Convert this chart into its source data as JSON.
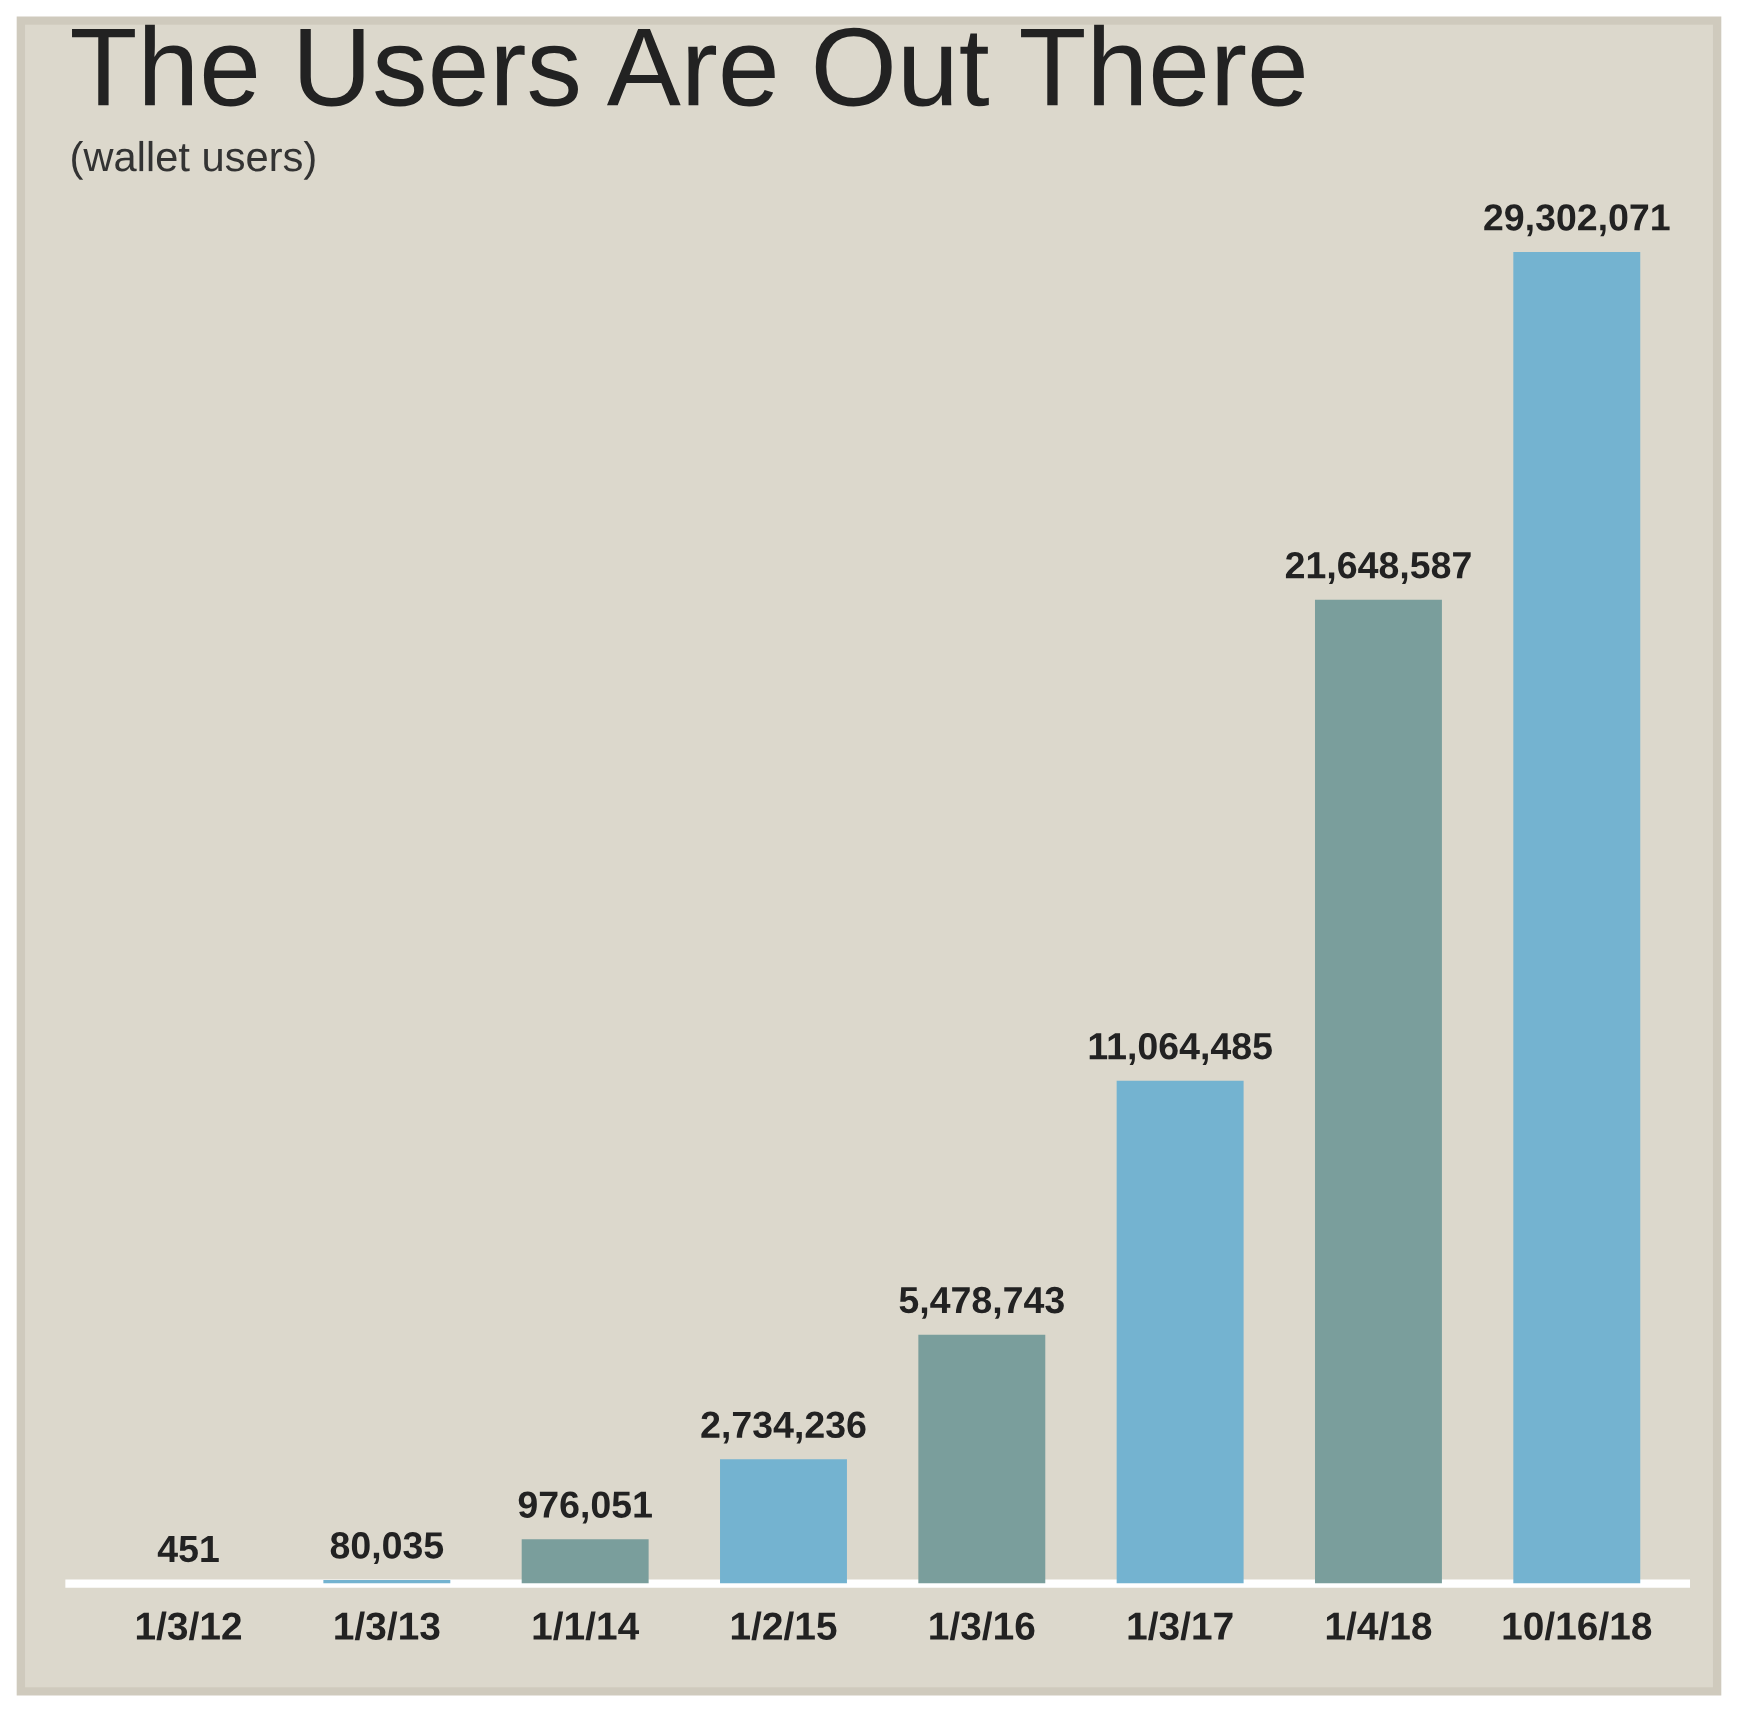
{
  "chart_data": {
    "type": "bar",
    "title": "The Users Are Out There",
    "subtitle": "(wallet users)",
    "categories": [
      "1/3/12",
      "1/3/13",
      "1/1/14",
      "1/2/15",
      "1/3/16",
      "1/3/17",
      "1/4/18",
      "10/16/18"
    ],
    "values": [
      451,
      80035,
      976051,
      2734236,
      5478743,
      11064485,
      21648587,
      29302071
    ],
    "colors": [
      "#74b3d0",
      "#74b3d0",
      "#7a9e9c",
      "#74b3d0",
      "#7a9e9c",
      "#74b3d0",
      "#7a9e9c",
      "#74b3d0"
    ],
    "value_labels": [
      "451",
      "80,035",
      "976,051",
      "2,734,236",
      "5,478,743",
      "11,064,485",
      "21,648,587",
      "29,302,071"
    ],
    "grid": false,
    "legend": false
  }
}
